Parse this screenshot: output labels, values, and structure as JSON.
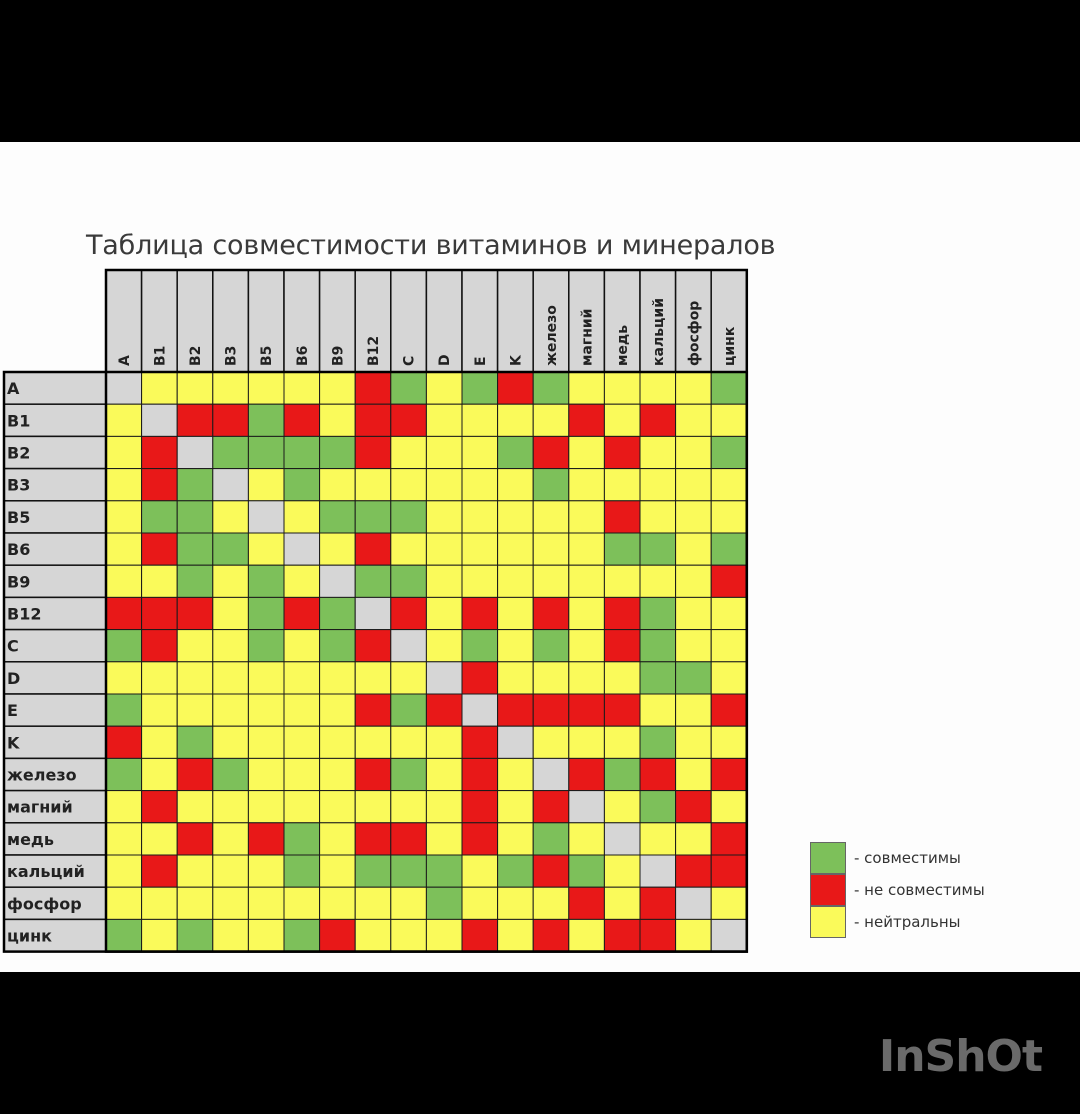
{
  "chart_data": {
    "type": "heatmap",
    "title": "Таблица совместимости витаминов и минералов",
    "columns": [
      "A",
      "B1",
      "B2",
      "B3",
      "B5",
      "B6",
      "B9",
      "B12",
      "C",
      "D",
      "E",
      "K",
      "железо",
      "магний",
      "медь",
      "кальций",
      "фосфор",
      "цинк"
    ],
    "rows": [
      "A",
      "B1",
      "B2",
      "B3",
      "B5",
      "B6",
      "B9",
      "B12",
      "C",
      "D",
      "E",
      "K",
      "железо",
      "магний",
      "медь",
      "кальций",
      "фосфор",
      "цинк"
    ],
    "code_key": {
      "G": "совместимы",
      "R": "не совместимы",
      "Y": "нейтральны",
      "X": "—"
    },
    "matrix": [
      [
        "X",
        "Y",
        "Y",
        "Y",
        "Y",
        "Y",
        "Y",
        "R",
        "G",
        "Y",
        "G",
        "R",
        "G",
        "Y",
        "Y",
        "Y",
        "Y",
        "G"
      ],
      [
        "Y",
        "X",
        "R",
        "R",
        "G",
        "R",
        "Y",
        "R",
        "R",
        "Y",
        "Y",
        "Y",
        "Y",
        "R",
        "Y",
        "R",
        "Y",
        "Y"
      ],
      [
        "Y",
        "R",
        "X",
        "G",
        "G",
        "G",
        "G",
        "R",
        "Y",
        "Y",
        "Y",
        "G",
        "R",
        "Y",
        "R",
        "Y",
        "Y",
        "G"
      ],
      [
        "Y",
        "R",
        "G",
        "X",
        "Y",
        "G",
        "Y",
        "Y",
        "Y",
        "Y",
        "Y",
        "Y",
        "G",
        "Y",
        "Y",
        "Y",
        "Y",
        "Y"
      ],
      [
        "Y",
        "G",
        "G",
        "Y",
        "X",
        "Y",
        "G",
        "G",
        "G",
        "Y",
        "Y",
        "Y",
        "Y",
        "Y",
        "R",
        "Y",
        "Y",
        "Y"
      ],
      [
        "Y",
        "R",
        "G",
        "G",
        "Y",
        "X",
        "Y",
        "R",
        "Y",
        "Y",
        "Y",
        "Y",
        "Y",
        "Y",
        "G",
        "G",
        "Y",
        "G"
      ],
      [
        "Y",
        "Y",
        "G",
        "Y",
        "G",
        "Y",
        "X",
        "G",
        "G",
        "Y",
        "Y",
        "Y",
        "Y",
        "Y",
        "Y",
        "Y",
        "Y",
        "R"
      ],
      [
        "R",
        "R",
        "R",
        "Y",
        "G",
        "R",
        "G",
        "X",
        "R",
        "Y",
        "R",
        "Y",
        "R",
        "Y",
        "R",
        "G",
        "Y",
        "Y"
      ],
      [
        "G",
        "R",
        "Y",
        "Y",
        "G",
        "Y",
        "G",
        "R",
        "X",
        "Y",
        "G",
        "Y",
        "G",
        "Y",
        "R",
        "G",
        "Y",
        "Y"
      ],
      [
        "Y",
        "Y",
        "Y",
        "Y",
        "Y",
        "Y",
        "Y",
        "Y",
        "Y",
        "X",
        "R",
        "Y",
        "Y",
        "Y",
        "Y",
        "G",
        "G",
        "Y"
      ],
      [
        "G",
        "Y",
        "Y",
        "Y",
        "Y",
        "Y",
        "Y",
        "R",
        "G",
        "R",
        "X",
        "R",
        "R",
        "R",
        "R",
        "Y",
        "Y",
        "R"
      ],
      [
        "R",
        "Y",
        "G",
        "Y",
        "Y",
        "Y",
        "Y",
        "Y",
        "Y",
        "Y",
        "R",
        "X",
        "Y",
        "Y",
        "Y",
        "G",
        "Y",
        "Y"
      ],
      [
        "G",
        "Y",
        "R",
        "G",
        "Y",
        "Y",
        "Y",
        "R",
        "G",
        "Y",
        "R",
        "Y",
        "X",
        "R",
        "G",
        "R",
        "Y",
        "R"
      ],
      [
        "Y",
        "R",
        "Y",
        "Y",
        "Y",
        "Y",
        "Y",
        "Y",
        "Y",
        "Y",
        "R",
        "Y",
        "R",
        "X",
        "Y",
        "G",
        "R",
        "Y"
      ],
      [
        "Y",
        "Y",
        "R",
        "Y",
        "R",
        "G",
        "Y",
        "R",
        "R",
        "Y",
        "R",
        "Y",
        "G",
        "Y",
        "X",
        "Y",
        "Y",
        "R"
      ],
      [
        "Y",
        "R",
        "Y",
        "Y",
        "Y",
        "G",
        "Y",
        "G",
        "G",
        "G",
        "Y",
        "G",
        "R",
        "G",
        "Y",
        "X",
        "R",
        "R"
      ],
      [
        "Y",
        "Y",
        "Y",
        "Y",
        "Y",
        "Y",
        "Y",
        "Y",
        "Y",
        "G",
        "Y",
        "Y",
        "Y",
        "R",
        "Y",
        "R",
        "X",
        "Y"
      ],
      [
        "G",
        "Y",
        "G",
        "Y",
        "Y",
        "G",
        "R",
        "Y",
        "Y",
        "Y",
        "R",
        "Y",
        "R",
        "Y",
        "R",
        "R",
        "Y",
        "X"
      ]
    ],
    "colors": {
      "G": "#7dc05a",
      "R": "#e81818",
      "Y": "#fafa5a",
      "X": "#d6d6d6",
      "header": "#d6d6d6"
    },
    "legend": [
      {
        "code": "G",
        "label": "- совместимы"
      },
      {
        "code": "R",
        "label": "- не совместимы"
      },
      {
        "code": "Y",
        "label": "- нейтральны"
      }
    ]
  },
  "watermark": "InShOt"
}
